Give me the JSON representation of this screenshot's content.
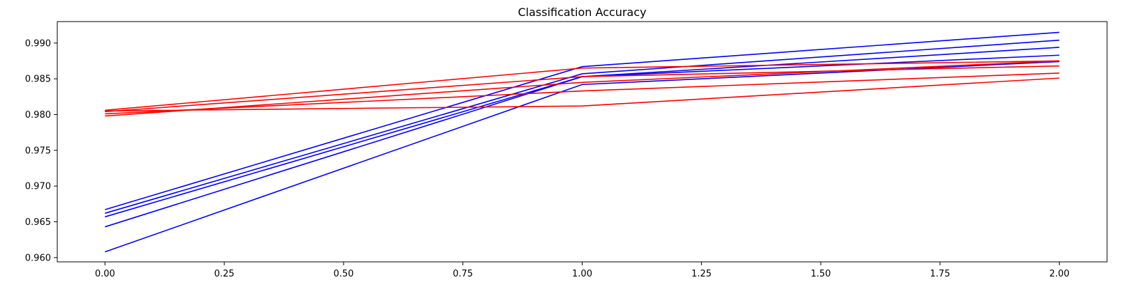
{
  "chart_data": {
    "type": "line",
    "title": "Classification Accuracy",
    "xlabel": "",
    "ylabel": "",
    "x": [
      0,
      1,
      2
    ],
    "xlim": [
      -0.1,
      2.1
    ],
    "ylim": [
      0.9594,
      0.993
    ],
    "xticks": [
      "0.00",
      "0.25",
      "0.50",
      "0.75",
      "1.00",
      "1.25",
      "1.50",
      "1.75",
      "2.00"
    ],
    "xtick_values": [
      0,
      0.25,
      0.5,
      0.75,
      1.0,
      1.25,
      1.5,
      1.75,
      2.0
    ],
    "yticks": [
      "0.960",
      "0.965",
      "0.970",
      "0.975",
      "0.980",
      "0.985",
      "0.990"
    ],
    "ytick_values": [
      0.96,
      0.965,
      0.97,
      0.975,
      0.98,
      0.985,
      0.99
    ],
    "grid": false,
    "series": [
      {
        "color": "#0000ff",
        "values": [
          0.9667,
          0.9867,
          0.9915
        ]
      },
      {
        "color": "#0000ff",
        "values": [
          0.9662,
          0.9857,
          0.9904
        ]
      },
      {
        "color": "#0000ff",
        "values": [
          0.9657,
          0.9853,
          0.9894
        ]
      },
      {
        "color": "#0000ff",
        "values": [
          0.9643,
          0.9853,
          0.9883
        ]
      },
      {
        "color": "#0000ff",
        "values": [
          0.9608,
          0.9842,
          0.9874
        ]
      },
      {
        "color": "#ff0000",
        "values": [
          0.9806,
          0.9865,
          0.9875
        ]
      },
      {
        "color": "#ff0000",
        "values": [
          0.9804,
          0.9853,
          0.9868
        ]
      },
      {
        "color": "#ff0000",
        "values": [
          0.9801,
          0.9833,
          0.9858
        ]
      },
      {
        "color": "#ff0000",
        "values": [
          0.9798,
          0.9845,
          0.9875
        ]
      },
      {
        "color": "#ff0000",
        "values": [
          0.9805,
          0.9812,
          0.9851
        ]
      }
    ]
  }
}
